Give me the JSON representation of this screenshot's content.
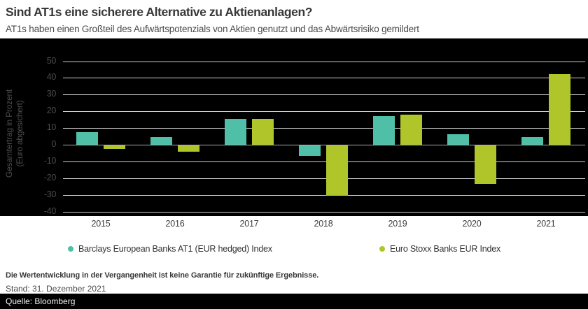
{
  "title": "Sind AT1s eine sicherere Alternative zu Aktienanlagen?",
  "subtitle": "AT1s haben einen Großteil des Aufwärtspotenzials von Aktien genutzt und das Abwärtsrisiko gemildert",
  "chart_data": {
    "type": "bar",
    "title": "Sind AT1s eine sicherere Alternative zu Aktienanlagen?",
    "categories": [
      "2015",
      "2016",
      "2017",
      "2018",
      "2019",
      "2020",
      "2021"
    ],
    "series": [
      {
        "name": "Barclays European Banks AT1 (EUR hedged) Index",
        "color": "#50BFA7",
        "values": [
          7.5,
          4.7,
          15.3,
          -6.2,
          17.3,
          6.1,
          4.7
        ]
      },
      {
        "name": "Euro Stoxx Banks EUR Index",
        "color": "#AFC52A",
        "values": [
          -2.1,
          -3.8,
          15.3,
          -30.1,
          18.0,
          -23.2,
          42.4
        ]
      }
    ],
    "ylabel_line1": "Gesamtertrag in Prozent",
    "ylabel_line2": "(Euro abgesichert)",
    "xlabel": "",
    "ylim": [
      -40,
      50
    ],
    "yticks": [
      50,
      40,
      30,
      20,
      10,
      0,
      -10,
      -20,
      -30,
      -40
    ],
    "grid": true,
    "plot_background": "#000000",
    "gridline_color": "#CFCFCF",
    "legend_position": "bottom"
  },
  "footer": {
    "disclaimer": "Die Wertentwicklung in der Vergangenheit ist keine Garantie für zukünftige Ergebnisse.",
    "as_of": "Stand: 31. Dezember 2021",
    "source": "Quelle: Bloomberg"
  }
}
